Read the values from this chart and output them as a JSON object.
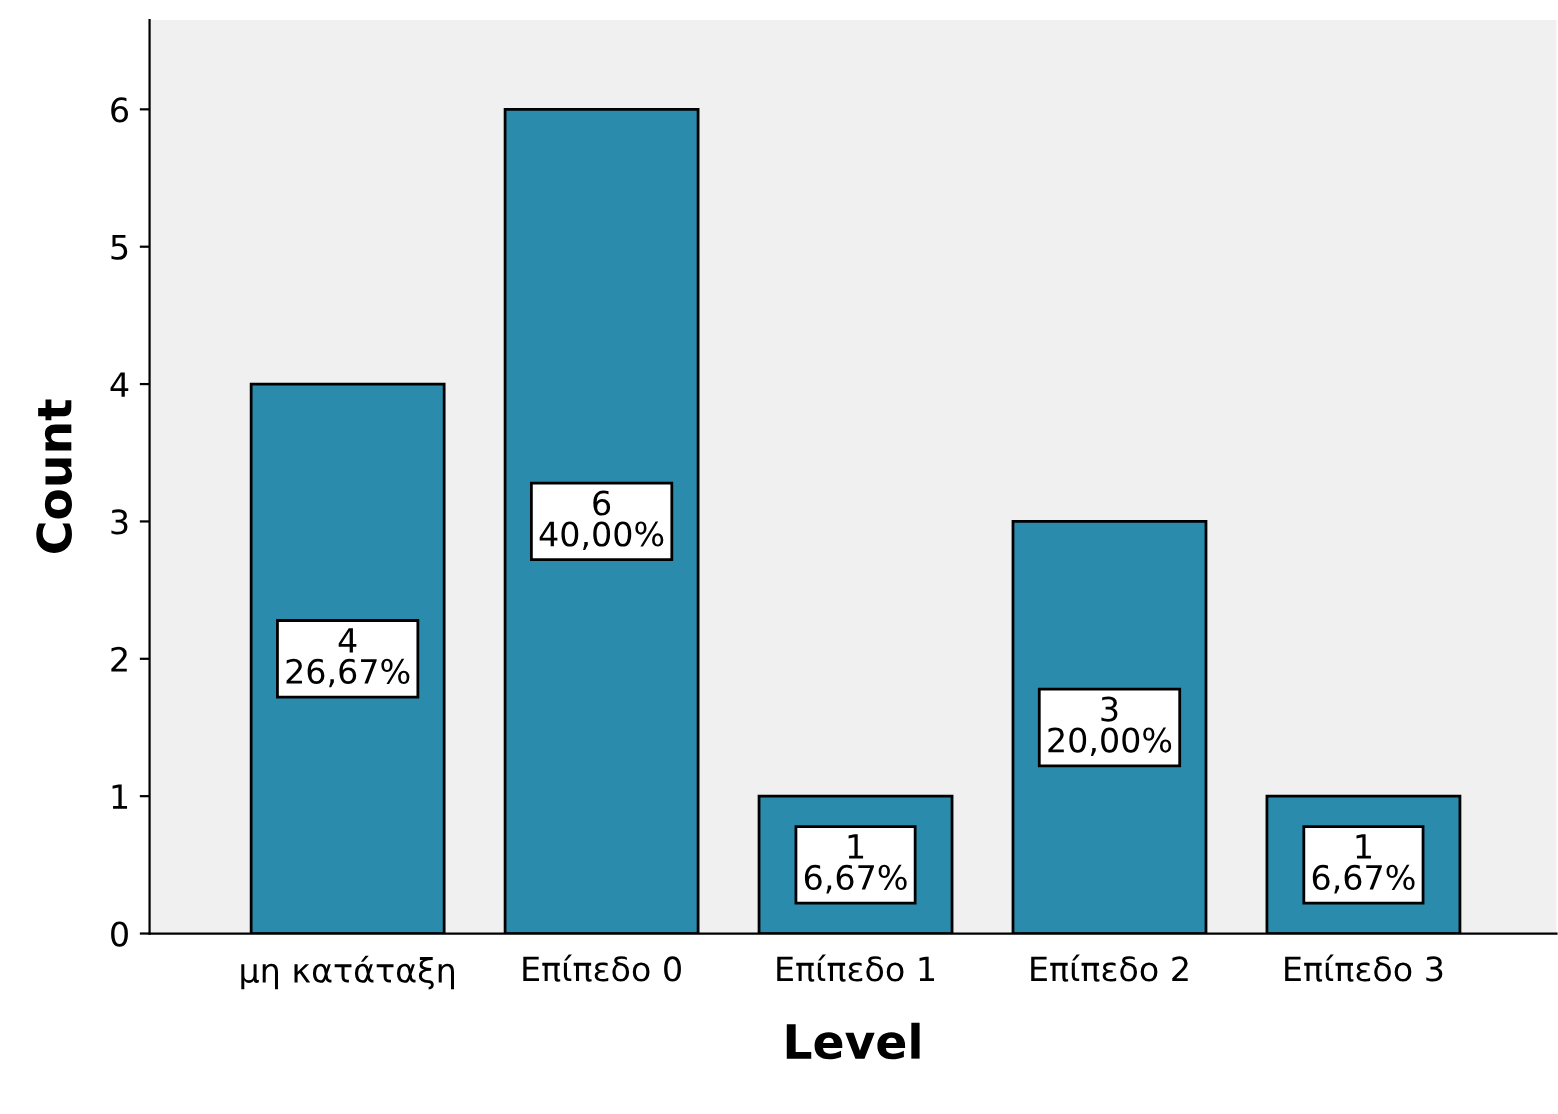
{
  "chart_data": {
    "type": "bar",
    "xlabel": "Level",
    "ylabel": "Count",
    "categories": [
      "μη κατάταξη",
      "Επίπεδο 0",
      "Επίπεδο 1",
      "Επίπεδο 2",
      "Επίπεδο 3"
    ],
    "values": [
      4,
      6,
      1,
      3,
      1
    ],
    "value_labels": [
      "4\n26,67%",
      "6\n40,00%",
      "1\n6,67%",
      "3\n20,00%",
      "1\n6,67%"
    ],
    "color": "#2a8bad",
    "ylim": [
      0,
      6.65
    ],
    "yticks": [
      0,
      1,
      2,
      3,
      4,
      5,
      6
    ],
    "grid": false,
    "legend": false
  }
}
